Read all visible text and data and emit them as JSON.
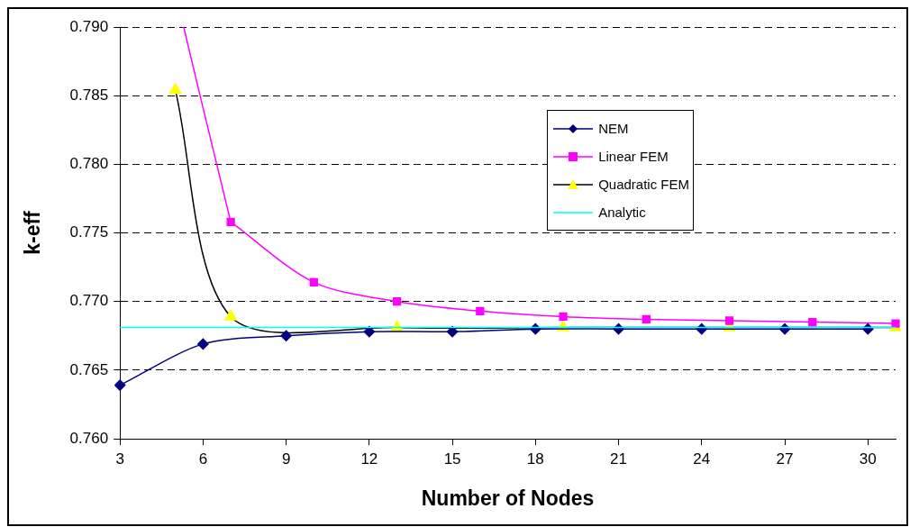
{
  "chart_data": {
    "type": "line",
    "xlabel": "Number of Nodes",
    "ylabel": "k-eff",
    "xlim": [
      3,
      31
    ],
    "xticks": [
      3,
      6,
      9,
      12,
      15,
      18,
      21,
      24,
      27,
      30
    ],
    "ylim": [
      0.76,
      0.79
    ],
    "yticks": [
      {
        "value": 0.76,
        "label": "0.760"
      },
      {
        "value": 0.765,
        "label": "0.765"
      },
      {
        "value": 0.77,
        "label": "0.770"
      },
      {
        "value": 0.775,
        "label": "0.775"
      },
      {
        "value": 0.78,
        "label": "0.780"
      },
      {
        "value": 0.785,
        "label": "0.785"
      },
      {
        "value": 0.79,
        "label": "0.790"
      }
    ],
    "grid": "y",
    "legend": "right",
    "series": [
      {
        "name": "NEM",
        "color": "#000080",
        "marker": "diamond",
        "x": [
          3,
          6,
          9,
          12,
          15,
          18,
          21,
          24,
          27,
          30
        ],
        "values": [
          0.7639,
          0.7669,
          0.7675,
          0.7678,
          0.7678,
          0.768,
          0.768,
          0.768,
          0.768,
          0.768
        ]
      },
      {
        "name": "Linear FEM",
        "color": "#ff00ff",
        "marker": "square",
        "x": [
          7,
          10,
          13,
          16,
          19,
          22,
          25,
          28,
          31
        ],
        "values": [
          0.7758,
          0.7714,
          0.77,
          0.7693,
          0.7689,
          0.7687,
          0.7686,
          0.7685,
          0.7684
        ]
      },
      {
        "name": "Quadratic FEM",
        "color": "#000000",
        "colors": [
          "#ffff00",
          "#ffff00",
          "#ffff00",
          "#ffff00",
          "#ffff00",
          "#ffff00"
        ],
        "marker": "triangle",
        "x": [
          5,
          7,
          13,
          19,
          25,
          31
        ],
        "values": [
          0.7854,
          0.7689,
          0.7681,
          0.7681,
          0.7681,
          0.7681
        ]
      },
      {
        "name": "Analytic",
        "color": "#00ffff",
        "marker": "none",
        "x": [
          3,
          31
        ],
        "values": [
          0.7681,
          0.7681
        ]
      },
      {
        "color": "#ff00ff",
        "marker": "none",
        "x": [
          5.3,
          6,
          7
        ],
        "values": [
          0.79,
          0.7841,
          0.7758
        ]
      }
    ]
  }
}
